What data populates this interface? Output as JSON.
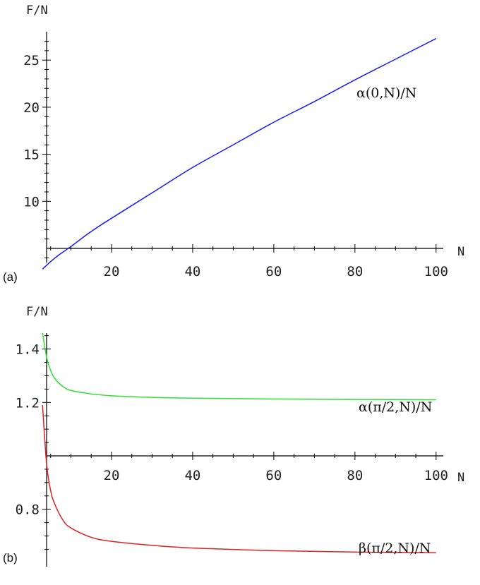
{
  "chart_data": [
    {
      "type": "line",
      "panel_label": "(a)",
      "xlabel": "N",
      "ylabel": "F/N",
      "xlim": [
        2,
        100
      ],
      "ylim": [
        2.5,
        28
      ],
      "x_ticks": [
        20,
        40,
        60,
        80,
        100
      ],
      "y_ticks": [
        10,
        15,
        20,
        25
      ],
      "axis_crossing": {
        "x_axis_at_y": 5,
        "y_axis_at_x": 4
      },
      "grid": false,
      "series": [
        {
          "name": "α(0,N)/N",
          "color": "#1a1aff",
          "x": [
            3,
            5,
            7,
            10,
            15,
            20,
            30,
            40,
            50,
            60,
            70,
            80,
            90,
            100
          ],
          "y": [
            2.8,
            3.6,
            4.3,
            5.2,
            6.8,
            8.2,
            10.9,
            13.6,
            16.0,
            18.4,
            20.6,
            22.9,
            25.1,
            27.3
          ]
        }
      ]
    },
    {
      "type": "line",
      "panel_label": "(b)",
      "xlabel": "N",
      "ylabel": "F/N",
      "xlim": [
        2,
        100
      ],
      "ylim": [
        0.62,
        1.48
      ],
      "x_ticks": [
        20,
        40,
        60,
        80,
        100
      ],
      "y_ticks": [
        0.8,
        1.2,
        1.4
      ],
      "y_tick_labels": [
        "0.8",
        "1.2",
        "1.4"
      ],
      "axis_crossing": {
        "x_axis_at_y": 1.0,
        "y_axis_at_x": 4
      },
      "grid": false,
      "series": [
        {
          "name": "α(π/2,N)/N",
          "color": "#33dd33",
          "x": [
            3,
            4,
            5,
            6,
            8,
            10,
            15,
            20,
            30,
            40,
            60,
            80,
            100
          ],
          "y": [
            1.46,
            1.37,
            1.32,
            1.29,
            1.26,
            1.245,
            1.232,
            1.225,
            1.219,
            1.216,
            1.213,
            1.211,
            1.21
          ]
        },
        {
          "name": "β(π/2,N)/N",
          "color": "#dd2222",
          "x": [
            3,
            4,
            5,
            6,
            8,
            10,
            15,
            20,
            30,
            40,
            60,
            80,
            100
          ],
          "y": [
            1.19,
            0.97,
            0.87,
            0.82,
            0.76,
            0.73,
            0.695,
            0.68,
            0.665,
            0.655,
            0.645,
            0.64,
            0.637
          ]
        }
      ]
    }
  ]
}
